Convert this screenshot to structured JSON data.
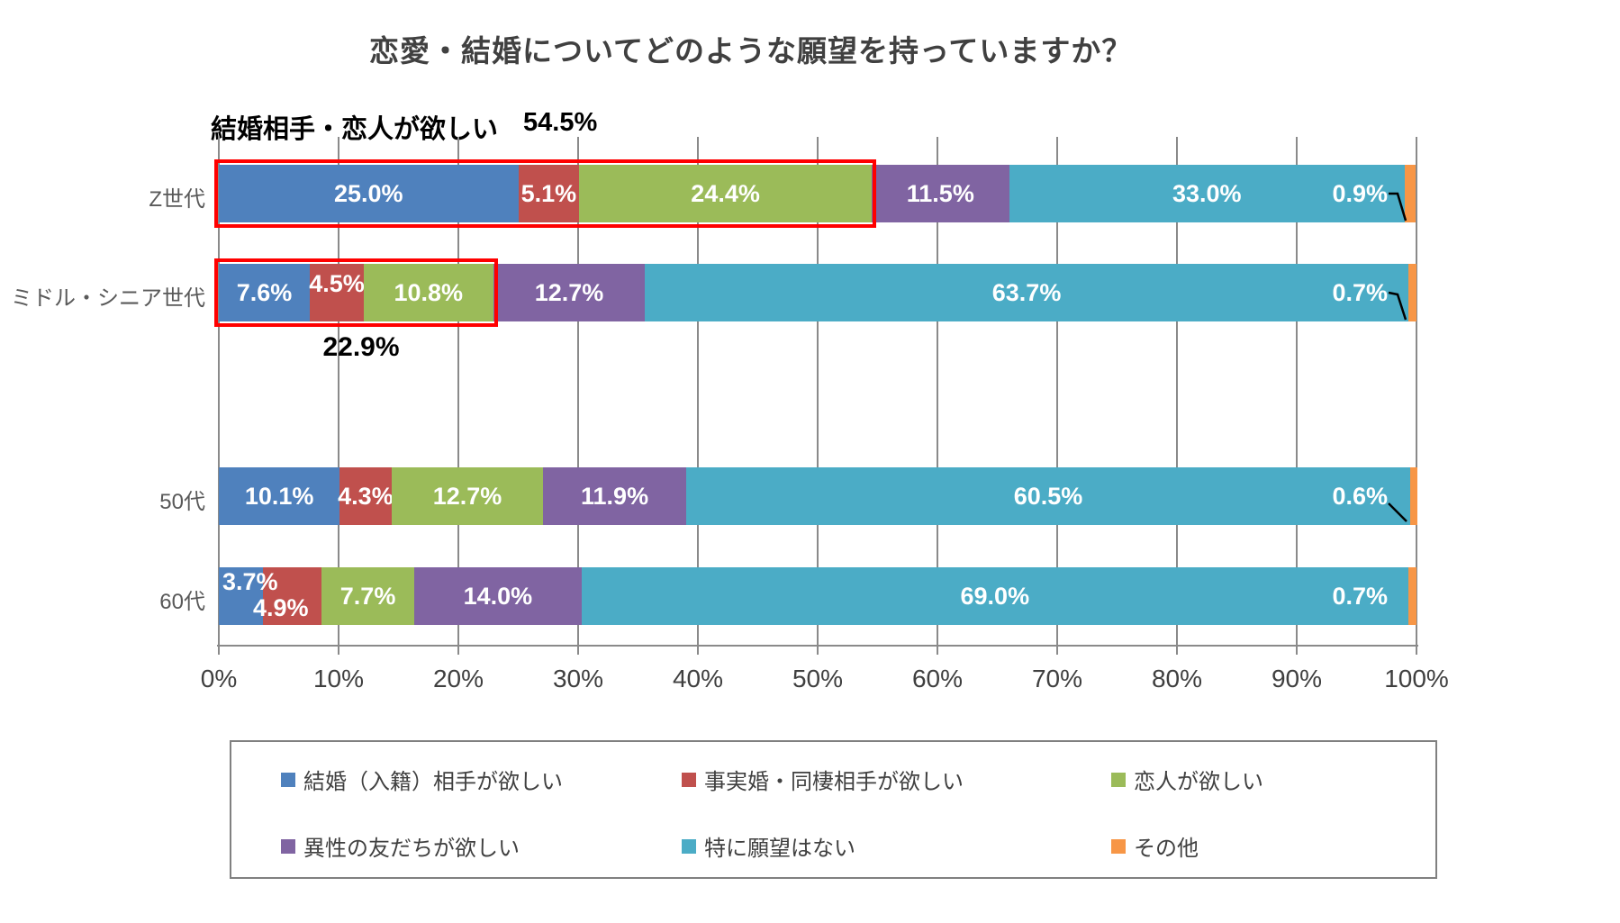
{
  "title": "恋愛・結婚についてどのような願望を持っていますか？",
  "annotations": {
    "highlight_top": {
      "label": "結婚相手・恋人が欲しい",
      "value": "54.5%"
    },
    "highlight_middle": {
      "value": "22.9%"
    }
  },
  "chart_data": {
    "type": "bar",
    "orientation": "horizontal",
    "stacked": true,
    "unit": "%",
    "categories": [
      "Z世代",
      "ミドル・シニア世代",
      "50代",
      "60代"
    ],
    "series": [
      {
        "name": "結婚（入籍）相手が欲しい",
        "color": "#4F81BD",
        "values": [
          25.0,
          7.6,
          10.1,
          3.7
        ]
      },
      {
        "name": "事実婚・同棲相手が欲しい",
        "color": "#C0504D",
        "values": [
          5.1,
          4.5,
          4.3,
          4.9
        ]
      },
      {
        "name": "恋人が欲しい",
        "color": "#9BBB59",
        "values": [
          24.4,
          10.8,
          12.7,
          7.7
        ]
      },
      {
        "name": "異性の友だちが欲しい",
        "color": "#8064A2",
        "values": [
          11.5,
          12.7,
          11.9,
          14.0
        ]
      },
      {
        "name": "特に願望はない",
        "color": "#4BACC6",
        "values": [
          33.0,
          63.7,
          60.5,
          69.0
        ]
      },
      {
        "name": "その他",
        "color": "#F79646",
        "values": [
          0.9,
          0.7,
          0.6,
          0.7
        ]
      }
    ],
    "x_ticks": [
      "0%",
      "10%",
      "20%",
      "30%",
      "40%",
      "50%",
      "60%",
      "70%",
      "80%",
      "90%",
      "100%"
    ],
    "xlim": [
      0,
      100
    ],
    "grid": true,
    "legend_position": "bottom",
    "highlights": [
      {
        "category": "Z世代",
        "span_percent": 54.5
      },
      {
        "category": "ミドル・シニア世代",
        "span_percent": 22.9
      }
    ],
    "highlight_color": "#FF0000"
  }
}
